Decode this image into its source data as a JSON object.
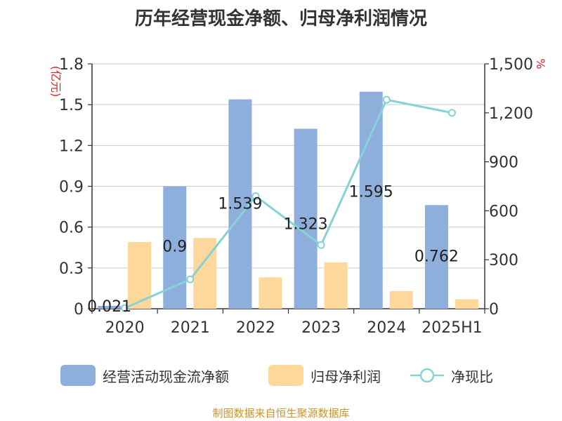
{
  "title": "历年经营现金净额、归母净利润情况",
  "source": "制图数据来自恒生聚源数据库",
  "chart_data": {
    "type": "bar",
    "categories": [
      "2020",
      "2021",
      "2022",
      "2023",
      "2024",
      "2025H1"
    ],
    "y_left": {
      "unit": "(亿元)",
      "ylim": [
        0,
        1.8
      ],
      "ticks": [
        "0",
        "0.3",
        "0.6",
        "0.9",
        "1.2",
        "1.5",
        "1.8"
      ]
    },
    "y_right": {
      "unit": "%",
      "ylim": [
        0,
        1500
      ],
      "ticks": [
        "0",
        "300",
        "600",
        "900",
        "1,200",
        "1,500"
      ]
    },
    "grid": true,
    "legend_position": "bottom",
    "series": [
      {
        "name": "经营活动现金流净额",
        "kind": "bar",
        "axis": "left",
        "color": "#8eaedb",
        "values": [
          0.021,
          0.9,
          1.539,
          1.323,
          1.595,
          0.762
        ],
        "labels": [
          "0.021",
          "0.9",
          "1.539",
          "1.323",
          "1.595",
          "0.762"
        ]
      },
      {
        "name": "归母净利润",
        "kind": "bar",
        "axis": "left",
        "color": "#fdd89a",
        "values": [
          0.49,
          0.52,
          0.23,
          0.34,
          0.13,
          0.07
        ]
      },
      {
        "name": "净现比",
        "kind": "line",
        "axis": "right",
        "color": "#86d2d6",
        "values": [
          4,
          180,
          690,
          390,
          1280,
          1200
        ]
      }
    ]
  }
}
